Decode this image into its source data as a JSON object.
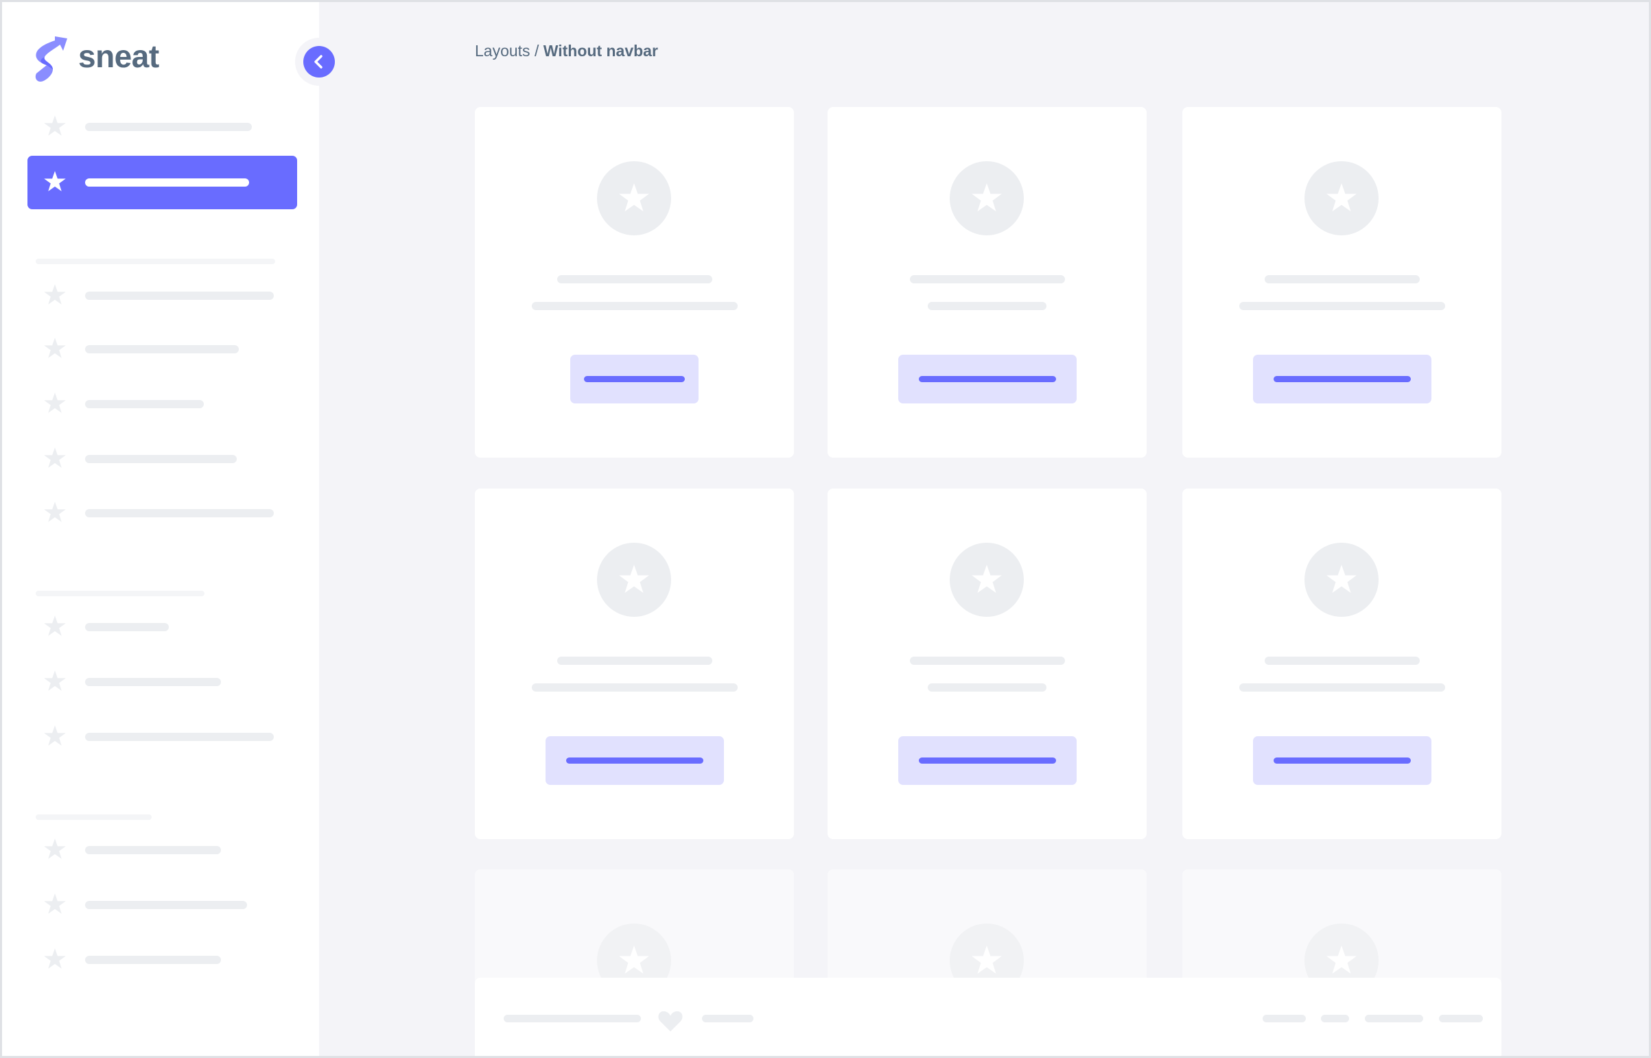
{
  "sidebar": {
    "brand": "sneat",
    "collapse_icon": "chevron-left-icon",
    "item_icon": "star-icon",
    "active_index": 1,
    "item_count": 13
  },
  "breadcrumb": {
    "parent": "Layouts",
    "separator": " / ",
    "current": "Without navbar"
  },
  "colors": {
    "primary": "#696cff",
    "primary_light": "#e1e1fe",
    "text": "#566a7f",
    "skeleton": "#eceef1",
    "background": "#f4f4f8"
  },
  "footer": {
    "icon": "heart-icon"
  }
}
